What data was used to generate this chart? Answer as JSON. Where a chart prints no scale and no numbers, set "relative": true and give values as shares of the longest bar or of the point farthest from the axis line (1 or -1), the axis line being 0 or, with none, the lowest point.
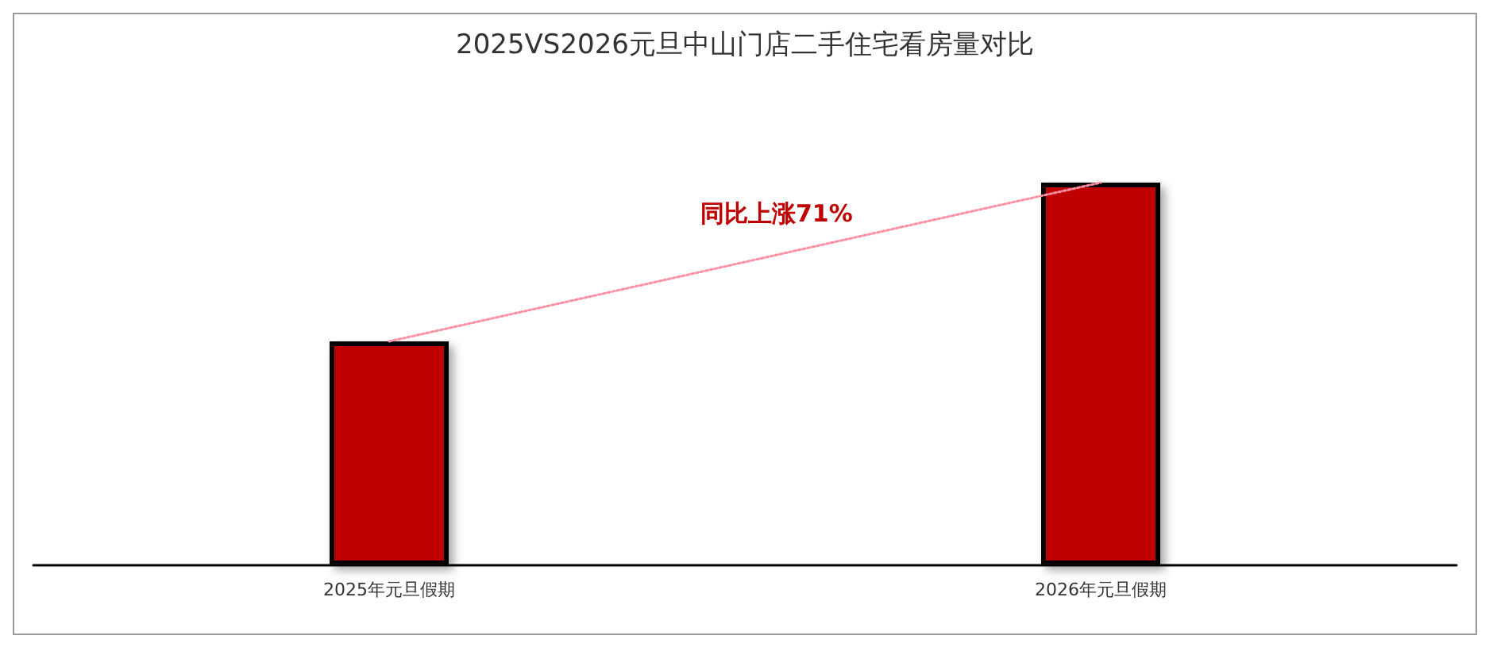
{
  "chart_data": {
    "type": "bar",
    "title": "2025VS2026元旦中山门店二手住宅看房量对比",
    "categories": [
      "2025年元旦假期",
      "2026年元旦假期"
    ],
    "relative": true,
    "series": [
      {
        "color": "#c00000",
        "values": [
          0.585,
          1
        ]
      },
      {
        "type": "line",
        "color": "#ff8fa3",
        "values": [
          0.585,
          1
        ],
        "line_style": "dotted",
        "marker": "none"
      }
    ],
    "annotations": [
      "同比上涨71%"
    ]
  }
}
